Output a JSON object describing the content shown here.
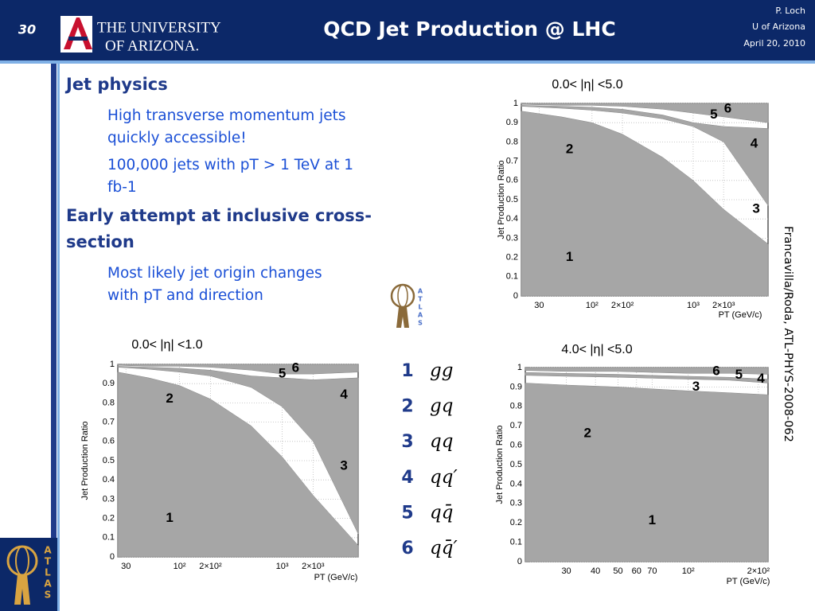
{
  "header": {
    "slide_number": "30",
    "logo_line1": "THE UNIVERSITY",
    "logo_line2": "OF ARIZONA.",
    "title": "QCD Jet Production @ LHC",
    "author": "P. Loch",
    "affiliation": "U of Arizona",
    "date": "April 20, 2010"
  },
  "bullets": [
    {
      "level": 1,
      "lines": [
        "Jet physics"
      ]
    },
    {
      "level": 2,
      "lines": [
        "High transverse momentum jets",
        "quickly accessible!"
      ]
    },
    {
      "level": 2,
      "lines": [
        "100,000 jets with pT > 1 TeV at 1",
        "fb-1"
      ]
    },
    {
      "level": 1,
      "lines": [
        "Early attempt at inclusive cross-",
        "section"
      ]
    },
    {
      "level": 2,
      "lines": [
        "Most likely jet origin changes",
        "with pT and direction"
      ]
    }
  ],
  "legend": [
    {
      "number": "1",
      "process": "gg"
    },
    {
      "number": "2",
      "process": "gq"
    },
    {
      "number": "3",
      "process": "qq"
    },
    {
      "number": "4",
      "process": "qq′"
    },
    {
      "number": "5",
      "process": "qq̄"
    },
    {
      "number": "6",
      "process": "qq̄′"
    }
  ],
  "atlas_logo": "ATLAS",
  "source": "Francavilla/Roda, ATL-PHYS-2008-062",
  "chart_data": [
    {
      "type": "area",
      "title": "0.0< |η| <5.0",
      "y_label": "Jet Production Ratio",
      "x_label": "PT (GeV/c)",
      "log_x": true,
      "grid": true,
      "color": "#a6a6a6",
      "xlim": [
        20,
        5500
      ],
      "ylim": [
        0,
        1
      ],
      "xticks": [
        30,
        {
          "value": 100,
          "label": "10²"
        },
        {
          "value": 200,
          "label": "2×10²"
        },
        {
          "value": 1000,
          "label": "10³"
        },
        {
          "value": 2000,
          "label": "2×10³"
        }
      ],
      "yticks": [
        0,
        0.1,
        0.2,
        0.3,
        0.4,
        0.5,
        0.6,
        0.7,
        0.8,
        0.9,
        1
      ],
      "x": [
        20,
        50,
        100,
        200,
        500,
        1000,
        2000,
        5500
      ],
      "bands": [
        {
          "lower": [
            0,
            0,
            0,
            0,
            0,
            0,
            0,
            0
          ],
          "upper": [
            0.96,
            0.93,
            0.9,
            0.84,
            0.72,
            0.6,
            0.45,
            0.27
          ]
        },
        {
          "lower": [
            0.985,
            0.975,
            0.965,
            0.95,
            0.92,
            0.88,
            0.8,
            0.47
          ],
          "upper": [
            0.99,
            0.985,
            0.98,
            0.97,
            0.94,
            0.9,
            0.88,
            0.87
          ]
        },
        {
          "lower": [
            0.995,
            0.99,
            0.99,
            0.985,
            0.97,
            0.95,
            0.93,
            0.9
          ],
          "upper": [
            1,
            1,
            1,
            1,
            1,
            1,
            1,
            1
          ]
        }
      ],
      "region_labels": [
        {
          "text": "1",
          "x": 60,
          "y": 0.2
        },
        {
          "text": "2",
          "x": 60,
          "y": 0.76
        },
        {
          "text": "3",
          "x": 4200,
          "y": 0.45
        },
        {
          "text": "4",
          "x": 4000,
          "y": 0.79
        },
        {
          "text": "5",
          "x": 1600,
          "y": 0.94
        },
        {
          "text": "6",
          "x": 2200,
          "y": 0.97
        }
      ]
    },
    {
      "type": "area",
      "title": "0.0< |η| <1.0",
      "y_label": "Jet Production Ratio",
      "x_label": "PT (GeV/c)",
      "log_x": true,
      "grid": true,
      "color": "#a6a6a6",
      "xlim": [
        25,
        5500
      ],
      "ylim": [
        0,
        1
      ],
      "xticks": [
        30,
        {
          "value": 100,
          "label": "10²"
        },
        {
          "value": 200,
          "label": "2×10²"
        },
        {
          "value": 1000,
          "label": "10³"
        },
        {
          "value": 2000,
          "label": "2×10³"
        }
      ],
      "yticks": [
        0,
        0.1,
        0.2,
        0.3,
        0.4,
        0.5,
        0.6,
        0.7,
        0.8,
        0.9,
        1
      ],
      "x": [
        25,
        50,
        100,
        200,
        500,
        1000,
        2000,
        5500
      ],
      "bands": [
        {
          "lower": [
            0,
            0,
            0,
            0,
            0,
            0,
            0,
            0
          ],
          "upper": [
            0.96,
            0.93,
            0.89,
            0.82,
            0.68,
            0.52,
            0.32,
            0.06
          ]
        },
        {
          "lower": [
            0.985,
            0.975,
            0.96,
            0.94,
            0.88,
            0.78,
            0.6,
            0.12
          ],
          "upper": [
            0.99,
            0.985,
            0.98,
            0.97,
            0.94,
            0.93,
            0.92,
            0.93
          ]
        },
        {
          "lower": [
            0.995,
            0.99,
            0.99,
            0.985,
            0.97,
            0.95,
            0.95,
            0.96
          ],
          "upper": [
            1,
            1,
            1,
            1,
            1,
            1,
            1,
            1
          ]
        }
      ],
      "region_labels": [
        {
          "text": "1",
          "x": 80,
          "y": 0.2
        },
        {
          "text": "2",
          "x": 80,
          "y": 0.82
        },
        {
          "text": "3",
          "x": 4000,
          "y": 0.47
        },
        {
          "text": "4",
          "x": 4000,
          "y": 0.84
        },
        {
          "text": "5",
          "x": 1000,
          "y": 0.95
        },
        {
          "text": "6",
          "x": 1350,
          "y": 0.98
        }
      ]
    },
    {
      "type": "area",
      "title": "4.0< |η| <5.0",
      "y_label": "Jet Production Ratio",
      "x_label": "PT (GeV/c)",
      "log_x": true,
      "grid": true,
      "color": "#a6a6a6",
      "xlim": [
        20,
        220
      ],
      "ylim": [
        0,
        1
      ],
      "xticks": [
        30,
        40,
        50,
        60,
        70,
        {
          "value": 100,
          "label": "10²"
        },
        {
          "value": 200,
          "label": "2×10²"
        }
      ],
      "yticks": [
        0,
        0.1,
        0.2,
        0.3,
        0.4,
        0.5,
        0.6,
        0.7,
        0.8,
        0.9,
        1
      ],
      "x": [
        20,
        30,
        50,
        70,
        100,
        150,
        220
      ],
      "bands": [
        {
          "lower": [
            0,
            0,
            0,
            0,
            0,
            0,
            0
          ],
          "upper": [
            0.92,
            0.91,
            0.9,
            0.89,
            0.88,
            0.87,
            0.86
          ]
        },
        {
          "lower": [
            0.96,
            0.955,
            0.95,
            0.945,
            0.94,
            0.935,
            0.92
          ],
          "upper": [
            0.975,
            0.97,
            0.965,
            0.96,
            0.955,
            0.95,
            0.94
          ]
        },
        {
          "lower": [
            0.985,
            0.98,
            0.98,
            0.975,
            0.97,
            0.97,
            0.965
          ],
          "upper": [
            1,
            1,
            1,
            1,
            1,
            1,
            1
          ]
        }
      ],
      "region_labels": [
        {
          "text": "1",
          "x": 70,
          "y": 0.21
        },
        {
          "text": "2",
          "x": 37,
          "y": 0.66
        },
        {
          "text": "3",
          "x": 108,
          "y": 0.9
        },
        {
          "text": "4",
          "x": 205,
          "y": 0.94
        },
        {
          "text": "5",
          "x": 165,
          "y": 0.96
        },
        {
          "text": "6",
          "x": 132,
          "y": 0.98
        }
      ]
    }
  ]
}
